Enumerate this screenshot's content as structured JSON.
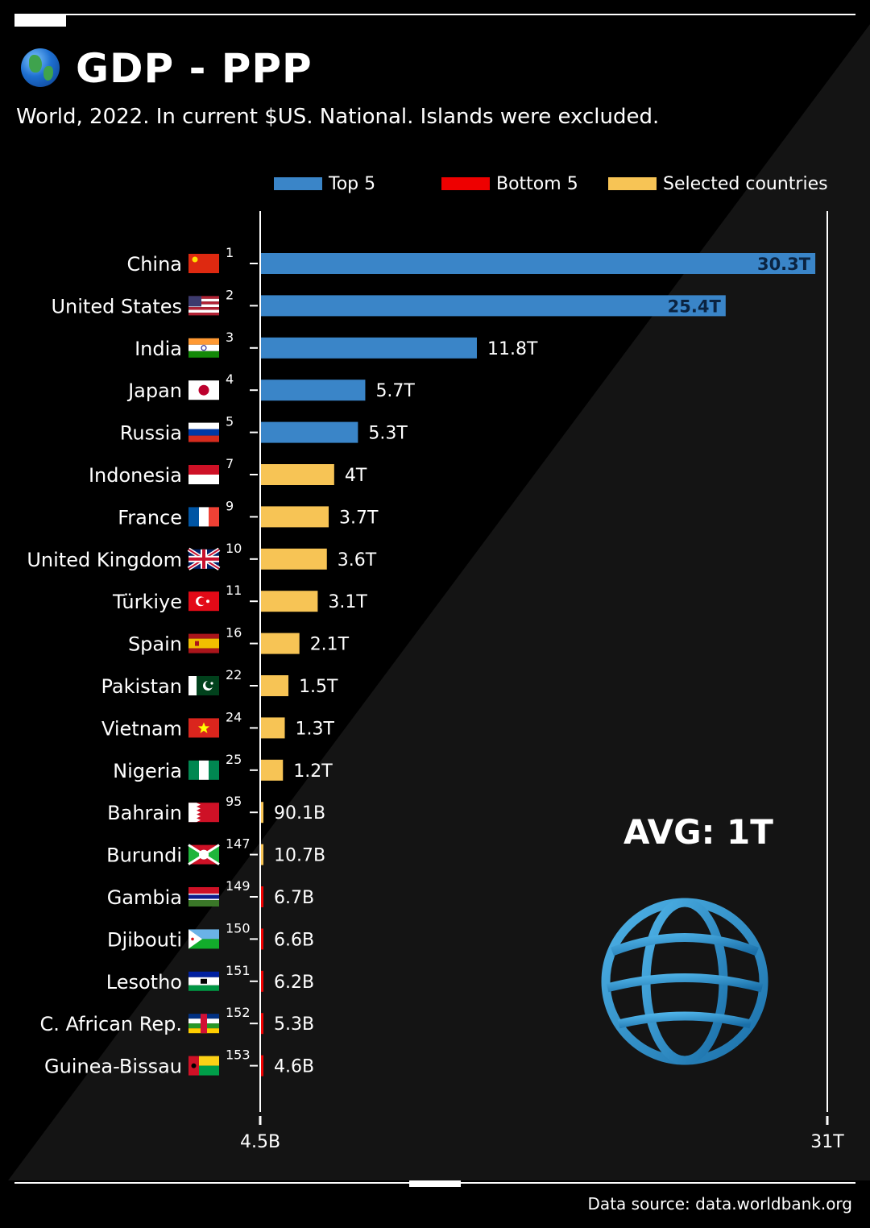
{
  "header": {
    "title": "GDP - PPP",
    "subtitle": "World, 2022. In current $US. National. Islands were excluded."
  },
  "legend": [
    {
      "label": "Top 5",
      "color": "#3a85c8"
    },
    {
      "label": "Bottom 5",
      "color": "#ee0000"
    },
    {
      "label": "Selected countries",
      "color": "#f7c455"
    }
  ],
  "avg_label": "AVG: 1T",
  "footer": {
    "source": "Data source: data.worldbank.org"
  },
  "colors": {
    "top5": "#3a85c8",
    "bottom5": "#ee0000",
    "selected": "#f7c455",
    "background": "#000000",
    "text": "#ffffff"
  },
  "chart_data": {
    "type": "bar",
    "orientation": "horizontal",
    "title": "GDP - PPP",
    "xlabel": "",
    "ylabel": "",
    "x_ticks": [
      "4.5B",
      "31T"
    ],
    "xlim": [
      4.5,
      31000
    ],
    "value_unit": "billion US$",
    "legend_position": "top",
    "grid": false,
    "categories": [
      "China",
      "United States",
      "India",
      "Japan",
      "Russia",
      "Indonesia",
      "France",
      "United Kingdom",
      "Türkiye",
      "Spain",
      "Pakistan",
      "Vietnam",
      "Nigeria",
      "Bahrain",
      "Burundi",
      "Gambia",
      "Djibouti",
      "Lesotho",
      "C. African Rep.",
      "Guinea-Bissau"
    ],
    "ranks": [
      1,
      2,
      3,
      4,
      5,
      7,
      9,
      10,
      11,
      16,
      22,
      24,
      25,
      95,
      147,
      149,
      150,
      151,
      152,
      153
    ],
    "values": [
      30300,
      25400,
      11800,
      5700,
      5300,
      4000,
      3700,
      3600,
      3100,
      2100,
      1500,
      1300,
      1200,
      90.1,
      10.7,
      6.7,
      6.6,
      6.2,
      5.3,
      4.6
    ],
    "value_labels": [
      "30.3T",
      "25.4T",
      "11.8T",
      "5.7T",
      "5.3T",
      "4T",
      "3.7T",
      "3.6T",
      "3.1T",
      "2.1T",
      "1.5T",
      "1.3T",
      "1.2T",
      "90.1B",
      "10.7B",
      "6.7B",
      "6.6B",
      "6.2B",
      "5.3B",
      "4.6B"
    ],
    "groups": [
      "top5",
      "top5",
      "top5",
      "top5",
      "top5",
      "selected",
      "selected",
      "selected",
      "selected",
      "selected",
      "selected",
      "selected",
      "selected",
      "selected",
      "selected",
      "bottom5",
      "bottom5",
      "bottom5",
      "bottom5",
      "bottom5"
    ],
    "flags": [
      "cn",
      "us",
      "in",
      "jp",
      "ru",
      "id",
      "fr",
      "gb",
      "tr",
      "es",
      "pk",
      "vn",
      "ng",
      "bh",
      "bi",
      "gm",
      "dj",
      "ls",
      "cf",
      "gw"
    ]
  }
}
